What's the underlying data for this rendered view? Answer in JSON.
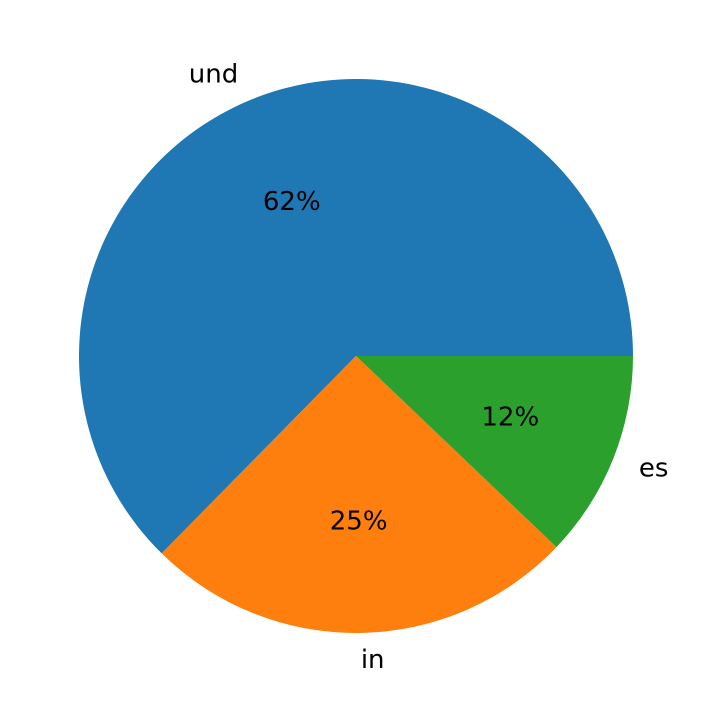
{
  "chart_data": {
    "type": "pie",
    "categories": [
      "und",
      "in",
      "es"
    ],
    "values": [
      62,
      25,
      12
    ],
    "value_labels": [
      "62%",
      "25%",
      "12%"
    ],
    "colors": [
      "#1f77b4",
      "#ff7f0e",
      "#2ca02c"
    ]
  }
}
